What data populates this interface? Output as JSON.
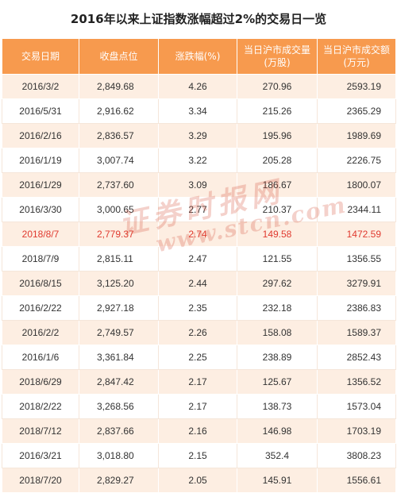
{
  "title": "2016年以来上证指数涨幅超过2%的交易日一览",
  "headers": [
    "交易日期",
    "收盘点位",
    "涨跌幅(%)",
    "当日沪市成交量(万股)",
    "当日沪市成交额(万元)"
  ],
  "rows": [
    [
      "2016/3/2",
      "2,849.68",
      "4.26",
      "270.96",
      "2593.19"
    ],
    [
      "2016/5/31",
      "2,916.62",
      "3.34",
      "215.26",
      "2365.29"
    ],
    [
      "2016/2/16",
      "2,836.57",
      "3.29",
      "195.96",
      "1989.69"
    ],
    [
      "2016/1/19",
      "3,007.74",
      "3.22",
      "205.28",
      "2226.75"
    ],
    [
      "2016/1/29",
      "2,737.60",
      "3.09",
      "186.67",
      "1800.07"
    ],
    [
      "2016/3/30",
      "3,000.65",
      "2.77",
      "210.37",
      "2344.11"
    ],
    [
      "2018/8/7",
      "2,779.37",
      "2.74",
      "149.58",
      "1472.59"
    ],
    [
      "2018/7/9",
      "2,815.11",
      "2.47",
      "121.55",
      "1356.55"
    ],
    [
      "2016/8/15",
      "3,125.20",
      "2.44",
      "297.62",
      "3279.91"
    ],
    [
      "2016/2/22",
      "2,927.18",
      "2.35",
      "232.18",
      "2386.83"
    ],
    [
      "2016/2/2",
      "2,749.57",
      "2.26",
      "158.08",
      "1589.37"
    ],
    [
      "2016/1/6",
      "3,361.84",
      "2.25",
      "238.89",
      "2852.43"
    ],
    [
      "2018/6/29",
      "2,847.42",
      "2.17",
      "125.67",
      "1356.52"
    ],
    [
      "2018/2/22",
      "3,268.56",
      "2.17",
      "138.73",
      "1573.04"
    ],
    [
      "2018/7/12",
      "2,837.66",
      "2.16",
      "146.98",
      "1703.19"
    ],
    [
      "2016/3/21",
      "3,018.80",
      "2.15",
      "352.4",
      "3808.23"
    ],
    [
      "2018/7/20",
      "2,829.27",
      "2.05",
      "145.91",
      "1556.61"
    ]
  ],
  "highlight_row_index": 6,
  "highlight_color": "#e03a2f",
  "header_color": "#f79a4e",
  "stripe_color": "#fdeee2",
  "watermark": {
    "chinese": "证券时报网",
    "latin": "www.stcn.com"
  }
}
